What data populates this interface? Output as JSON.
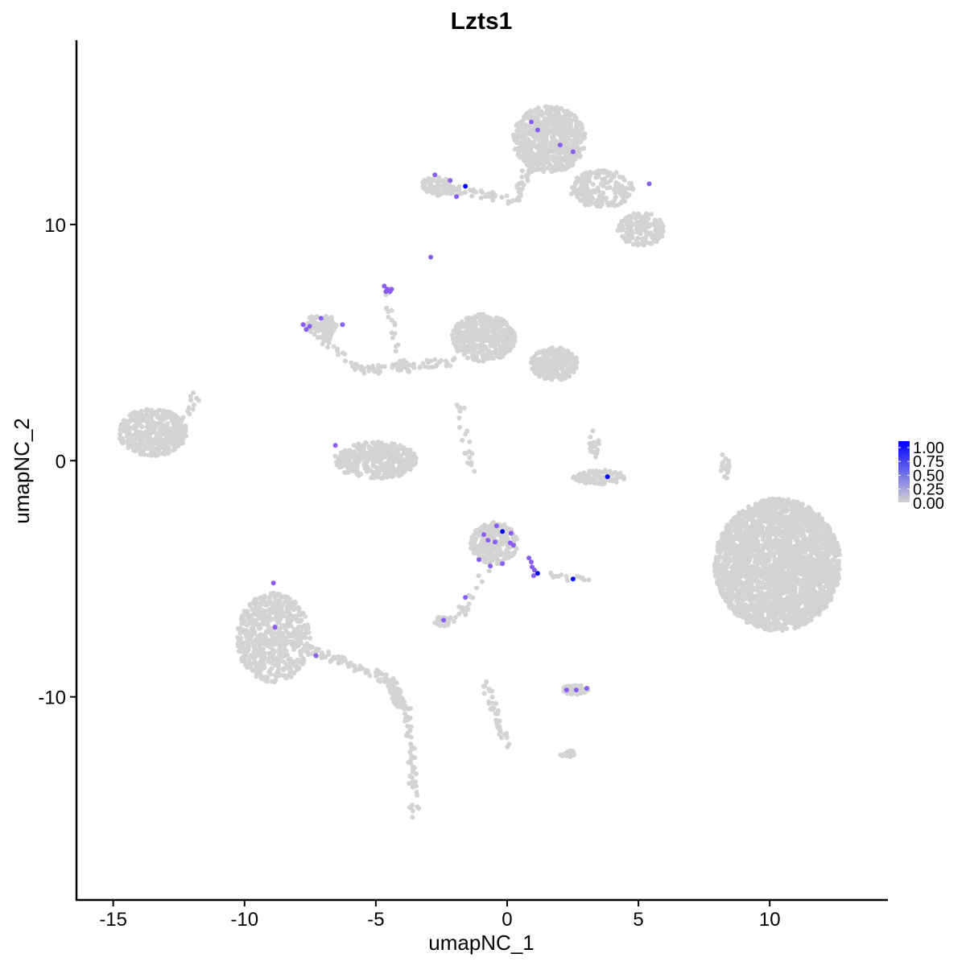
{
  "chart_data": {
    "type": "scatter",
    "title": "Lzts1",
    "xlabel": "umapNC_1",
    "ylabel": "umapNC_2",
    "xlim": [
      -16.4,
      14.5
    ],
    "ylim": [
      -18.6,
      17.8
    ],
    "xticks": [
      -15,
      -10,
      -5,
      0,
      5,
      10
    ],
    "yticks": [
      -10,
      0,
      10
    ],
    "grid": false,
    "legend": {
      "placement": "right",
      "type": "colorbar",
      "ticks": [
        "1.00",
        "0.75",
        "0.50",
        "0.25",
        "0.00"
      ],
      "low_color": "#D3D3D3",
      "high_color": "#0000FF",
      "mid_color": "#8A5CF0"
    },
    "background_clusters": [
      {
        "cx": 10.3,
        "cy": -4.4,
        "rx": 2.4,
        "ry": 2.8,
        "n": 2600
      },
      {
        "cx": -13.5,
        "cy": 1.2,
        "rx": 1.3,
        "ry": 1.0,
        "n": 420
      },
      {
        "cx": 1.6,
        "cy": 13.6,
        "rx": 1.4,
        "ry": 1.4,
        "n": 650
      },
      {
        "cx": 3.6,
        "cy": 11.5,
        "rx": 1.2,
        "ry": 0.8,
        "n": 180
      },
      {
        "cx": 5.1,
        "cy": 9.8,
        "rx": 0.9,
        "ry": 0.7,
        "n": 150
      },
      {
        "cx": -0.9,
        "cy": 5.2,
        "rx": 1.2,
        "ry": 1.0,
        "n": 420
      },
      {
        "cx": 1.8,
        "cy": 4.1,
        "rx": 0.9,
        "ry": 0.7,
        "n": 260
      },
      {
        "cx": -5.0,
        "cy": 0.0,
        "rx": 1.6,
        "ry": 0.8,
        "n": 360
      },
      {
        "cx": -8.9,
        "cy": -7.5,
        "rx": 1.4,
        "ry": 1.9,
        "n": 620
      },
      {
        "cx": -0.5,
        "cy": -3.5,
        "rx": 0.9,
        "ry": 0.9,
        "n": 260
      },
      {
        "cx": 3.5,
        "cy": -0.7,
        "rx": 1.0,
        "ry": 0.3,
        "n": 110
      },
      {
        "cx": -7.1,
        "cy": 5.7,
        "rx": 0.6,
        "ry": 0.5,
        "n": 90
      },
      {
        "cx": -2.7,
        "cy": 11.6,
        "rx": 0.6,
        "ry": 0.4,
        "n": 80
      },
      {
        "cx": -2.4,
        "cy": -6.8,
        "rx": 0.4,
        "ry": 0.2,
        "n": 30
      },
      {
        "cx": 2.6,
        "cy": -9.7,
        "rx": 0.5,
        "ry": 0.2,
        "n": 45
      },
      {
        "cx": 2.3,
        "cy": -12.4,
        "rx": 0.3,
        "ry": 0.15,
        "n": 15
      },
      {
        "cx": 8.3,
        "cy": -0.2,
        "rx": 0.2,
        "ry": 0.6,
        "n": 20
      },
      {
        "cx": 3.3,
        "cy": 0.7,
        "rx": 0.2,
        "ry": 0.6,
        "n": 25
      }
    ],
    "background_trails": [
      {
        "from": [
          -4.5,
          -9.3
        ],
        "to": [
          -4.0,
          -10.4
        ],
        "n": 90
      },
      {
        "from": [
          -7.5,
          -8.0
        ],
        "to": [
          -4.5,
          -9.3
        ],
        "n": 70
      },
      {
        "from": [
          -3.8,
          -10.5
        ],
        "to": [
          -3.5,
          -15.0
        ],
        "n": 50
      },
      {
        "from": [
          -2.3,
          11.5
        ],
        "to": [
          0.3,
          11.0
        ],
        "n": 40
      },
      {
        "from": [
          0.3,
          11.0
        ],
        "to": [
          1.0,
          13.0
        ],
        "n": 40
      },
      {
        "from": [
          -5.5,
          3.8
        ],
        "to": [
          -2.0,
          4.2
        ],
        "n": 60
      },
      {
        "from": [
          -7.0,
          5.2
        ],
        "to": [
          -5.5,
          3.8
        ],
        "n": 30
      },
      {
        "from": [
          -4.7,
          7.3
        ],
        "to": [
          -3.8,
          3.5
        ],
        "n": 25
      },
      {
        "from": [
          -1.8,
          2.5
        ],
        "to": [
          -1.4,
          -0.5
        ],
        "n": 20
      },
      {
        "from": [
          -0.7,
          -4.5
        ],
        "to": [
          -1.8,
          -6.5
        ],
        "n": 20
      },
      {
        "from": [
          -0.9,
          -9.3
        ],
        "to": [
          0.0,
          -12.0
        ],
        "n": 40
      },
      {
        "from": [
          -12.3,
          1.8
        ],
        "to": [
          -11.8,
          2.8
        ],
        "n": 12
      },
      {
        "from": [
          1.5,
          -4.9
        ],
        "to": [
          3.2,
          -4.9
        ],
        "n": 15
      }
    ],
    "expressing_cells": [
      {
        "x": 0.92,
        "y": 14.34,
        "v": 0.5
      },
      {
        "x": 1.16,
        "y": 14.0,
        "v": 0.5
      },
      {
        "x": 2.02,
        "y": 13.36,
        "v": 0.5
      },
      {
        "x": 2.51,
        "y": 13.08,
        "v": 0.5
      },
      {
        "x": -2.75,
        "y": 12.1,
        "v": 0.5
      },
      {
        "x": -2.17,
        "y": 11.86,
        "v": 0.5
      },
      {
        "x": -1.59,
        "y": 11.62,
        "v": 1.0
      },
      {
        "x": -1.93,
        "y": 11.18,
        "v": 0.5
      },
      {
        "x": 5.41,
        "y": 11.72,
        "v": 0.5
      },
      {
        "x": -2.91,
        "y": 8.62,
        "v": 0.5
      },
      {
        "x": -4.68,
        "y": 7.39,
        "v": 0.5
      },
      {
        "x": -4.56,
        "y": 7.26,
        "v": 0.5
      },
      {
        "x": -4.46,
        "y": 7.16,
        "v": 0.5
      },
      {
        "x": -4.4,
        "y": 7.26,
        "v": 0.5
      },
      {
        "x": -4.62,
        "y": 7.16,
        "v": 0.5
      },
      {
        "x": -7.77,
        "y": 5.76,
        "v": 0.5
      },
      {
        "x": -7.09,
        "y": 6.03,
        "v": 0.5
      },
      {
        "x": -7.65,
        "y": 5.55,
        "v": 0.5
      },
      {
        "x": -7.52,
        "y": 5.69,
        "v": 0.5
      },
      {
        "x": -6.27,
        "y": 5.76,
        "v": 0.5
      },
      {
        "x": -6.54,
        "y": 0.65,
        "v": 0.5
      },
      {
        "x": 3.82,
        "y": -0.68,
        "v": 1.0
      },
      {
        "x": -0.4,
        "y": -2.76,
        "v": 0.5
      },
      {
        "x": -0.18,
        "y": -3.0,
        "v": 1.0
      },
      {
        "x": -0.89,
        "y": -3.13,
        "v": 0.5
      },
      {
        "x": 0.15,
        "y": -3.07,
        "v": 0.5
      },
      {
        "x": -0.73,
        "y": -3.37,
        "v": 0.5
      },
      {
        "x": -0.46,
        "y": -3.44,
        "v": 0.5
      },
      {
        "x": 0.12,
        "y": -3.48,
        "v": 0.5
      },
      {
        "x": 0.24,
        "y": -3.58,
        "v": 0.5
      },
      {
        "x": -1.07,
        "y": -4.19,
        "v": 0.5
      },
      {
        "x": -0.64,
        "y": -4.46,
        "v": 0.5
      },
      {
        "x": -0.18,
        "y": -4.36,
        "v": 0.5
      },
      {
        "x": 0.83,
        "y": -4.12,
        "v": 0.5
      },
      {
        "x": 0.92,
        "y": -4.29,
        "v": 0.5
      },
      {
        "x": 0.95,
        "y": -4.5,
        "v": 0.5
      },
      {
        "x": 1.04,
        "y": -4.63,
        "v": 0.5
      },
      {
        "x": 1.16,
        "y": -4.77,
        "v": 1.0
      },
      {
        "x": 1.01,
        "y": -4.87,
        "v": 0.5
      },
      {
        "x": 2.51,
        "y": -5.01,
        "v": 1.0
      },
      {
        "x": -1.59,
        "y": -5.79,
        "v": 0.5
      },
      {
        "x": -2.42,
        "y": -6.75,
        "v": 0.5
      },
      {
        "x": -8.9,
        "y": -5.18,
        "v": 0.5
      },
      {
        "x": -8.84,
        "y": -7.05,
        "v": 0.5
      },
      {
        "x": -7.28,
        "y": -8.25,
        "v": 0.5
      },
      {
        "x": 2.26,
        "y": -9.71,
        "v": 0.5
      },
      {
        "x": 2.63,
        "y": -9.71,
        "v": 0.5
      },
      {
        "x": 3.03,
        "y": -9.64,
        "v": 0.5
      }
    ]
  }
}
